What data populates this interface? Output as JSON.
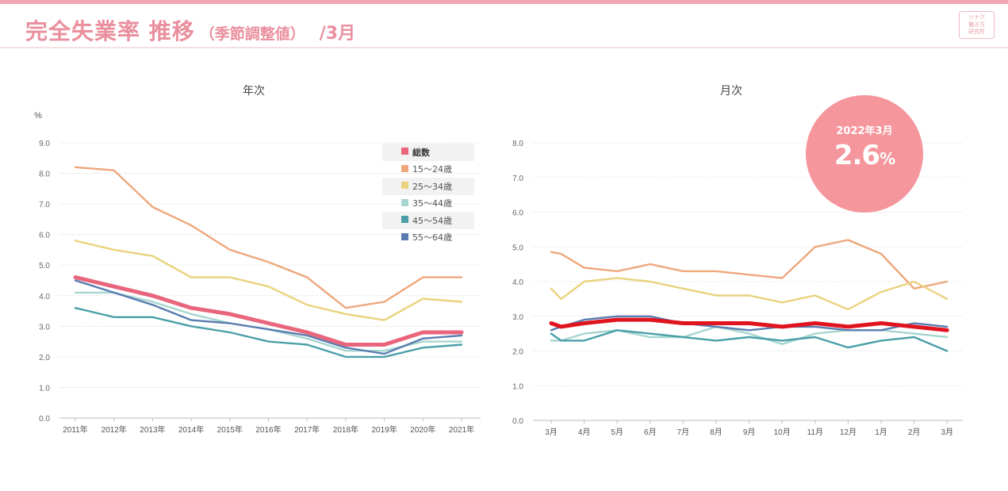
{
  "header": {
    "title": "完全失業率 推移",
    "subtitle": "（季節調整値）",
    "month": "/3月",
    "logo_lines": [
      "ツナグ",
      "働き方",
      "研究所"
    ]
  },
  "badge": {
    "date": "2022年3月",
    "value": "2.6",
    "unit": "%"
  },
  "colors": {
    "total": "#e8657c",
    "total_monthly": "#e0141e",
    "15-24": "#eea77c",
    "25-34": "#ead27e",
    "35-44": "#a6d6cf",
    "45-54": "#4a9fa8",
    "55-64": "#5a7cb0",
    "brand": "#ea8f9d",
    "badge": "#f4969c"
  },
  "chart_data": [
    {
      "id": "annual",
      "type": "line",
      "title": "年次",
      "ylabel": "%",
      "ylim": [
        0,
        9
      ],
      "yticks": [
        "0.0",
        "1.0",
        "2.0",
        "3.0",
        "4.0",
        "5.0",
        "6.0",
        "7.0",
        "8.0",
        "9.0"
      ],
      "categories": [
        "2011年",
        "2012年",
        "2013年",
        "2014年",
        "2015年",
        "2016年",
        "2017年",
        "2018年",
        "2019年",
        "2020年",
        "2021年"
      ],
      "legend": [
        "総数",
        "15～24歳",
        "25～34歳",
        "35～44歳",
        "45～54歳",
        "55～64歳"
      ],
      "series": [
        {
          "name": "15～24歳",
          "key": "15-24",
          "values": [
            8.2,
            8.1,
            6.9,
            6.3,
            5.5,
            5.1,
            4.6,
            3.6,
            3.8,
            4.6,
            4.6
          ]
        },
        {
          "name": "25～34歳",
          "key": "25-34",
          "values": [
            5.8,
            5.5,
            5.3,
            4.6,
            4.6,
            4.3,
            3.7,
            3.4,
            3.2,
            3.9,
            3.8
          ]
        },
        {
          "name": "35～44歳",
          "key": "35-44",
          "values": [
            4.1,
            4.1,
            3.8,
            3.4,
            3.1,
            2.9,
            2.6,
            2.2,
            2.2,
            2.5,
            2.5
          ]
        },
        {
          "name": "45～54歳",
          "key": "45-54",
          "values": [
            3.6,
            3.3,
            3.3,
            3.0,
            2.8,
            2.5,
            2.4,
            2.0,
            2.0,
            2.3,
            2.4
          ]
        },
        {
          "name": "55～64歳",
          "key": "55-64",
          "values": [
            4.5,
            4.1,
            3.7,
            3.2,
            3.1,
            2.9,
            2.7,
            2.3,
            2.1,
            2.6,
            2.7
          ]
        },
        {
          "name": "総数",
          "key": "total",
          "values": [
            4.6,
            4.3,
            4.0,
            3.6,
            3.4,
            3.1,
            2.8,
            2.4,
            2.4,
            2.8,
            2.8
          ],
          "bold": true
        }
      ]
    },
    {
      "id": "monthly",
      "type": "line",
      "title": "月次",
      "ylim": [
        0,
        8
      ],
      "yticks": [
        "0.0",
        "1.0",
        "2.0",
        "3.0",
        "4.0",
        "5.0",
        "6.0",
        "7.0",
        "8.0"
      ],
      "categories": [
        "3月",
        "4月",
        "5月",
        "6月",
        "7月",
        "8月",
        "9月",
        "10月",
        "11月",
        "12月",
        "1月",
        "2月",
        "3月"
      ],
      "series": [
        {
          "name": "15～24歳",
          "key": "15-24",
          "x": [
            0,
            0.3,
            1,
            2,
            3,
            4,
            5,
            6,
            7,
            8,
            9,
            10,
            11,
            12
          ],
          "values": [
            4.85,
            4.8,
            4.4,
            4.3,
            4.5,
            4.3,
            4.3,
            4.2,
            4.1,
            5.0,
            5.2,
            4.8,
            3.8,
            4.0
          ]
        },
        {
          "name": "25～34歳",
          "key": "25-34",
          "x": [
            0,
            0.3,
            1,
            2,
            3,
            4,
            5,
            6,
            7,
            8,
            9,
            10,
            11,
            12
          ],
          "values": [
            3.8,
            3.5,
            4.0,
            4.1,
            4.0,
            3.8,
            3.6,
            3.6,
            3.4,
            3.6,
            3.2,
            3.7,
            4.0,
            3.5
          ]
        },
        {
          "name": "35～44歳",
          "key": "35-44",
          "x": [
            0,
            0.3,
            1,
            2,
            3,
            4,
            5,
            6,
            7,
            8,
            9,
            10,
            11,
            12
          ],
          "values": [
            2.3,
            2.3,
            2.5,
            2.6,
            2.4,
            2.4,
            2.7,
            2.5,
            2.2,
            2.5,
            2.6,
            2.6,
            2.5,
            2.4
          ]
        },
        {
          "name": "45～54歳",
          "key": "45-54",
          "x": [
            0,
            0.3,
            1,
            2,
            3,
            4,
            5,
            6,
            7,
            8,
            9,
            10,
            11,
            12
          ],
          "values": [
            2.5,
            2.3,
            2.3,
            2.6,
            2.5,
            2.4,
            2.3,
            2.4,
            2.3,
            2.4,
            2.1,
            2.3,
            2.4,
            2.0
          ]
        },
        {
          "name": "55～64歳",
          "key": "55-64",
          "x": [
            0,
            0.3,
            1,
            2,
            3,
            4,
            5,
            6,
            7,
            8,
            9,
            10,
            11,
            12
          ],
          "values": [
            2.6,
            2.7,
            2.9,
            3.0,
            3.0,
            2.8,
            2.7,
            2.6,
            2.7,
            2.7,
            2.6,
            2.6,
            2.8,
            2.7
          ]
        },
        {
          "name": "総数",
          "key": "total_monthly",
          "x": [
            0,
            0.3,
            1,
            2,
            3,
            4,
            5,
            6,
            7,
            8,
            9,
            10,
            11,
            12
          ],
          "values": [
            2.8,
            2.7,
            2.8,
            2.9,
            2.9,
            2.8,
            2.8,
            2.8,
            2.7,
            2.8,
            2.7,
            2.8,
            2.7,
            2.6
          ],
          "bold": true
        }
      ]
    }
  ]
}
